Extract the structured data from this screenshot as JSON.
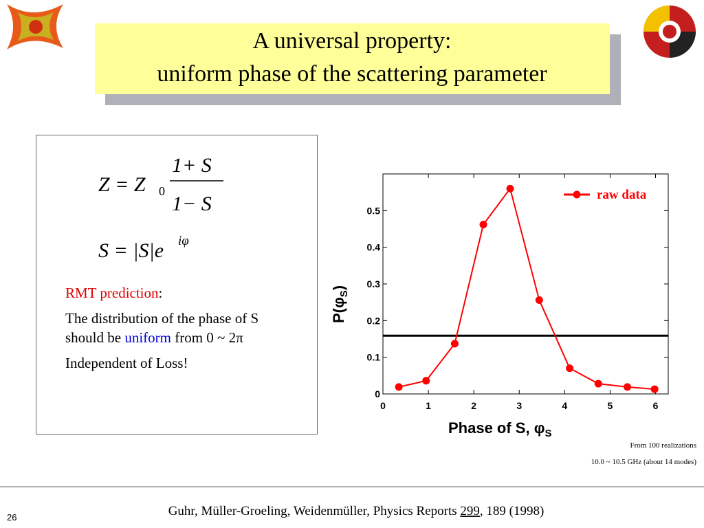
{
  "slide": {
    "title_line1": "A universal property:",
    "title_line2": "uniform phase of the scattering parameter",
    "eq1_left": "Z = Z",
    "eq1_sub": "0",
    "eq1_num": "1+ S",
    "eq1_den": "1− S",
    "eq2_base": "S = |S|e",
    "eq2_sup": "iφ",
    "rmt_label": "RMT prediction",
    "rmt_colon": ":",
    "para1_a": "The distribution of the phase of S should be ",
    "para1_b": "uniform",
    "para1_c": " from 0 ~ 2π",
    "para2": "Independent of Loss!",
    "note1": "From 100 realizations",
    "note2": "10.0 ~ 10.5 GHz (about 14 modes)",
    "citation_a": "Guhr, Müller-Groeling, Weidenmüller, Physics Reports ",
    "citation_vol": "299",
    "citation_b": ", 189 (1998)",
    "page_number": "26"
  },
  "chart_data": {
    "type": "line",
    "xlabel": "Phase of S, φ",
    "xlabel_sub": "S",
    "ylabel": "P(φ",
    "ylabel_sub": "S",
    "ylabel_close": ")",
    "x": [
      0.35,
      0.95,
      1.58,
      2.21,
      2.8,
      3.44,
      4.11,
      4.74,
      5.38,
      5.98
    ],
    "series": [
      {
        "name": "raw data",
        "color": "#ff0000",
        "values": [
          0.019,
          0.036,
          0.137,
          0.462,
          0.56,
          0.256,
          0.07,
          0.028,
          0.019,
          0.013
        ]
      }
    ],
    "reference": 0.159,
    "reference_color": "#000000",
    "xlim": [
      0,
      6.28
    ],
    "ylim": [
      0,
      0.6
    ],
    "xticks": [
      0,
      1,
      2,
      3,
      4,
      5,
      6
    ],
    "yticks": [
      0,
      0.1,
      0.2,
      0.3,
      0.4,
      0.5
    ],
    "legend": "upper right"
  }
}
